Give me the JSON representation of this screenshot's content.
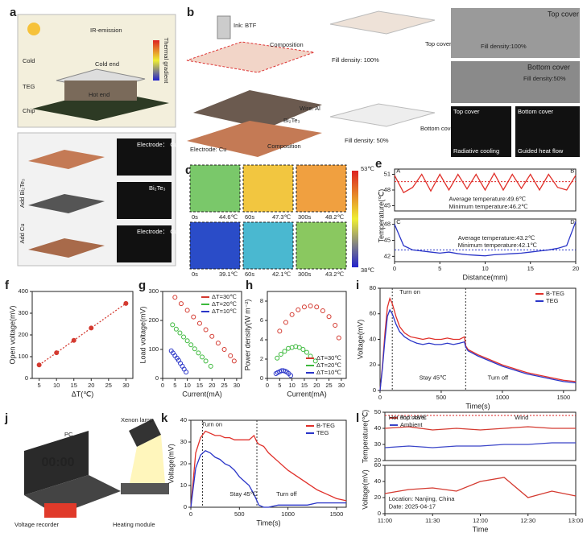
{
  "panels": [
    "a",
    "b",
    "c",
    "d",
    "e",
    "f",
    "g",
    "h",
    "i",
    "j",
    "k",
    "l"
  ],
  "illustrations": {
    "a": [
      "IR-emission",
      "Cold end",
      "Hot end",
      "Cold",
      "TEG",
      "Chip",
      "Thermal gradient",
      "Add Bi₂Te₃",
      "Add Cu",
      "Electrode： Cu",
      "Bi₂Te₃",
      "Electrode： Cu"
    ],
    "b": [
      "Ink: BTF",
      "Composition",
      "Top cover",
      "Fill density: 100%",
      "Wire: Al",
      "Bi₂Te₃",
      "Electrode: Cu",
      "Composition",
      "Bottom cover",
      "Fill density: 50%"
    ],
    "c": [
      "Top cover",
      "Fill density:100%",
      "Bottom cover",
      "Fill density:50%",
      "Top cover",
      "Bottom cover",
      "Radiative cooling",
      "Guided heat flow"
    ],
    "d": [
      "53℃",
      "38℃",
      "0s",
      "44.6℃",
      "60s",
      "47.3℃",
      "300s",
      "48.2℃",
      "0s",
      "39.1℃",
      "60s",
      "42.1℃",
      "300s",
      "43.2℃"
    ],
    "j": [
      "Xenon lamp",
      "PC",
      "00:00",
      "Voltage recorder",
      "Heating module"
    ]
  },
  "chart_data": [
    {
      "type": "line",
      "ylabel": "Temperature(℃)",
      "xlim": [
        0,
        20
      ],
      "ylim": [
        44,
        52
      ],
      "yticks": [
        45,
        48,
        51
      ],
      "hlines": [
        49.6
      ],
      "x": [
        0,
        1,
        2,
        3,
        4,
        5,
        6,
        7,
        8,
        9,
        10,
        11,
        12,
        13,
        14,
        15,
        16,
        17,
        18,
        19,
        20
      ],
      "series": [
        {
          "color": "#e0302a",
          "values": [
            50.8,
            47.5,
            48.5,
            51,
            47.8,
            51,
            48,
            51,
            48.2,
            51,
            48,
            51.2,
            48,
            51,
            48.3,
            51,
            48,
            51,
            48.5,
            48,
            50.8
          ]
        }
      ],
      "annotations": [
        "A",
        "B",
        "Average temperature:49.6℃",
        "Minimum temperature:46.2℃"
      ]
    },
    {
      "type": "line",
      "xlabel": "Distance(mm)",
      "xlim": [
        0,
        20
      ],
      "ylim": [
        41,
        49
      ],
      "xticks": [
        0,
        5,
        10,
        15,
        20
      ],
      "yticks": [
        42,
        45,
        48
      ],
      "hlines": [
        43.2
      ],
      "x": [
        0,
        1,
        2,
        3,
        4,
        5,
        6,
        7,
        8,
        9,
        10,
        11,
        12,
        13,
        14,
        15,
        16,
        17,
        18,
        19,
        20
      ],
      "series": [
        {
          "color": "#2a35c8",
          "values": [
            48,
            44,
            43.2,
            43,
            42.8,
            42.6,
            42.8,
            42.5,
            42.3,
            42.2,
            42.1,
            42.3,
            42.4,
            42.5,
            42.6,
            42.8,
            43,
            43.2,
            43.5,
            44,
            48.5
          ]
        }
      ],
      "annotations": [
        "C",
        "D",
        "Average temperature:43.2℃",
        "Minimum temperature:42.1℃"
      ]
    },
    {
      "type": "line",
      "markers": true,
      "xlabel": "ΔT(℃)",
      "ylabel": "Open voltage(mV)",
      "xlim": [
        3,
        32
      ],
      "ylim": [
        0,
        400
      ],
      "xticks": [
        5,
        10,
        15,
        20,
        25,
        30
      ],
      "yticks": [
        0,
        100,
        200,
        300,
        400
      ],
      "x": [
        5,
        10,
        15,
        20,
        30
      ],
      "series": [
        {
          "color": "#d43a30",
          "values": [
            62,
            118,
            175,
            232,
            345
          ]
        }
      ]
    },
    {
      "type": "scatter",
      "xlabel": "Current(mA)",
      "ylabel": "Load voltage(mV)",
      "xlim": [
        0,
        32
      ],
      "ylim": [
        0,
        300
      ],
      "xticks": [
        0,
        5,
        10,
        15,
        20,
        25,
        30
      ],
      "yticks": [
        0,
        100,
        200,
        300
      ],
      "legend": "upper right",
      "series": [
        {
          "name": "ΔT=30℃",
          "color": "#d43a30",
          "x": [
            5,
            7.5,
            10,
            12.5,
            15,
            17.5,
            20,
            22.5,
            25,
            27.5,
            29
          ],
          "values": [
            280,
            258,
            235,
            212,
            190,
            168,
            145,
            122,
            100,
            78,
            60
          ]
        },
        {
          "name": "ΔT=20℃",
          "color": "#3cb93c",
          "x": [
            4,
            5.5,
            7,
            8.5,
            10,
            11.5,
            13,
            14.5,
            16,
            17.5,
            19.5
          ],
          "values": [
            185,
            170,
            157,
            143,
            130,
            116,
            102,
            88,
            74,
            60,
            42
          ]
        },
        {
          "name": "ΔT=10℃",
          "color": "#2a35c8",
          "x": [
            3.5,
            4.2,
            5,
            5.8,
            6.5,
            7.2,
            8,
            8.7,
            9.5
          ],
          "values": [
            95,
            88,
            78,
            70,
            62,
            52,
            42,
            32,
            22
          ]
        }
      ]
    },
    {
      "type": "scatter",
      "xlabel": "Current(mA)",
      "ylabel": "Power density(W m⁻²)",
      "xlim": [
        0,
        32
      ],
      "ylim": [
        0,
        9
      ],
      "xticks": [
        0,
        5,
        10,
        15,
        20,
        25,
        30
      ],
      "yticks": [
        0,
        2,
        4,
        6,
        8
      ],
      "legend": "lower right",
      "series": [
        {
          "name": "ΔT=30℃",
          "color": "#d43a30",
          "x": [
            5,
            7.5,
            10,
            12.5,
            15,
            17.5,
            20,
            22.5,
            25,
            27.5,
            29
          ],
          "values": [
            4.9,
            5.8,
            6.6,
            7.1,
            7.4,
            7.5,
            7.4,
            7.0,
            6.4,
            5.5,
            4.2
          ]
        },
        {
          "name": "ΔT=20℃",
          "color": "#3cb93c",
          "x": [
            4,
            5.5,
            7,
            8.5,
            10,
            11.5,
            13,
            14.5,
            16,
            17.5,
            19.5
          ],
          "values": [
            2.1,
            2.5,
            2.8,
            3.1,
            3.2,
            3.3,
            3.2,
            3.0,
            2.7,
            2.3,
            1.8
          ]
        },
        {
          "name": "ΔT=10℃",
          "color": "#2a35c8",
          "x": [
            3.5,
            4.2,
            5,
            5.8,
            6.5,
            7.2,
            8,
            8.7,
            9.5
          ],
          "values": [
            0.5,
            0.6,
            0.7,
            0.8,
            0.8,
            0.75,
            0.65,
            0.5,
            0.3
          ]
        }
      ]
    },
    {
      "type": "line",
      "xlabel": "Time(s)",
      "ylabel": "Voltage(mV)",
      "xlim": [
        0,
        1600
      ],
      "ylim": [
        0,
        80
      ],
      "xticks": [
        0,
        500,
        1000,
        1500
      ],
      "yticks": [
        0,
        20,
        40,
        60,
        80
      ],
      "legend": "upper right",
      "vlines": [
        100,
        700
      ],
      "x": [
        0,
        20,
        40,
        60,
        80,
        100,
        130,
        160,
        200,
        250,
        300,
        350,
        400,
        450,
        500,
        550,
        600,
        650,
        690,
        700,
        720,
        760,
        800,
        900,
        1000,
        1100,
        1200,
        1300,
        1400,
        1500,
        1600
      ],
      "series": [
        {
          "name": "B-TEG",
          "color": "#e0302a",
          "values": [
            0,
            20,
            45,
            65,
            72,
            68,
            58,
            50,
            45,
            42,
            41,
            40,
            41,
            40,
            40,
            41,
            40,
            40,
            42,
            35,
            32,
            30,
            28,
            24,
            20,
            17,
            14,
            12,
            10,
            8,
            7
          ]
        },
        {
          "name": "TEG",
          "color": "#2a35c8",
          "values": [
            0,
            18,
            40,
            58,
            63,
            60,
            52,
            46,
            42,
            39,
            37,
            36,
            37,
            36,
            36,
            37,
            36,
            37,
            38,
            34,
            31,
            29,
            27,
            23,
            19,
            16,
            13,
            11,
            9,
            7,
            6
          ]
        }
      ],
      "annotations": [
        "Turn on",
        "Stay 45℃",
        "Turn off"
      ]
    },
    {
      "type": "line",
      "xlabel": "Time(s)",
      "ylabel": "Voltage(mV)",
      "xlim": [
        0,
        1600
      ],
      "ylim": [
        0,
        40
      ],
      "xticks": [
        0,
        500,
        1000,
        1500
      ],
      "yticks": [
        0,
        10,
        20,
        30,
        40
      ],
      "legend": "upper right",
      "vlines": [
        120,
        680
      ],
      "x": [
        0,
        50,
        100,
        150,
        200,
        250,
        300,
        350,
        400,
        450,
        500,
        550,
        600,
        650,
        680,
        700,
        750,
        800,
        900,
        1000,
        1100,
        1200,
        1300,
        1400,
        1500,
        1600
      ],
      "series": [
        {
          "name": "B-TEG",
          "color": "#e0302a",
          "values": [
            0,
            25,
            32,
            35,
            34,
            33,
            33,
            32,
            32,
            31,
            31,
            31,
            31,
            33,
            30,
            29,
            28,
            25,
            21,
            17,
            14,
            11,
            8,
            6,
            4,
            3
          ]
        },
        {
          "name": "TEG",
          "color": "#2a35c8",
          "values": [
            0,
            18,
            24,
            26,
            25,
            23,
            22,
            20,
            19,
            17,
            14,
            12,
            10,
            6,
            3,
            1,
            0,
            0,
            1,
            1,
            1,
            1,
            2,
            2,
            2,
            2
          ]
        }
      ],
      "annotations": [
        "Turn on",
        "Stay 45℃",
        "Turn off"
      ]
    },
    {
      "type": "line",
      "ylabel": "Temperature(℃)",
      "xlim": [
        11,
        13
      ],
      "ylim": [
        20,
        50
      ],
      "yticks": [
        20,
        30,
        40,
        50
      ],
      "hlines": [
        48
      ],
      "legend": "upper left",
      "x": [
        11,
        11.25,
        11.5,
        11.75,
        12,
        12.25,
        12.5,
        12.75,
        13
      ],
      "series": [
        {
          "name": "Top cover",
          "color": "#d43a30",
          "values": [
            40,
            41,
            39,
            40,
            39,
            40,
            41,
            40,
            40
          ]
        },
        {
          "name": "Ambient",
          "color": "#3a45c8",
          "values": [
            28,
            29,
            28,
            29,
            29,
            30,
            30,
            31,
            31
          ]
        }
      ],
      "annotations": [
        "Hot end: 48℃",
        "Wind"
      ]
    },
    {
      "type": "line",
      "ylabel": "Voltage(mV)",
      "xlabel": "Time",
      "xlim": [
        11,
        13
      ],
      "ylim": [
        0,
        60
      ],
      "yticks": [
        0,
        20,
        40,
        60
      ],
      "xticks": [
        {
          "value": 11,
          "label": "11:00"
        },
        {
          "value": 11.5,
          "label": "11:30"
        },
        {
          "value": 12,
          "label": "12:00"
        },
        {
          "value": 12.5,
          "label": "12:30"
        },
        {
          "value": 13,
          "label": "13:00"
        }
      ],
      "x": [
        11,
        11.25,
        11.5,
        11.75,
        12,
        12.25,
        12.5,
        12.75,
        13
      ],
      "series": [
        {
          "color": "#d43a30",
          "values": [
            25,
            30,
            32,
            28,
            40,
            45,
            20,
            28,
            22
          ]
        }
      ],
      "annotations": [
        "Location: Nanjing, China",
        "Date: 2025-04-17"
      ]
    }
  ]
}
